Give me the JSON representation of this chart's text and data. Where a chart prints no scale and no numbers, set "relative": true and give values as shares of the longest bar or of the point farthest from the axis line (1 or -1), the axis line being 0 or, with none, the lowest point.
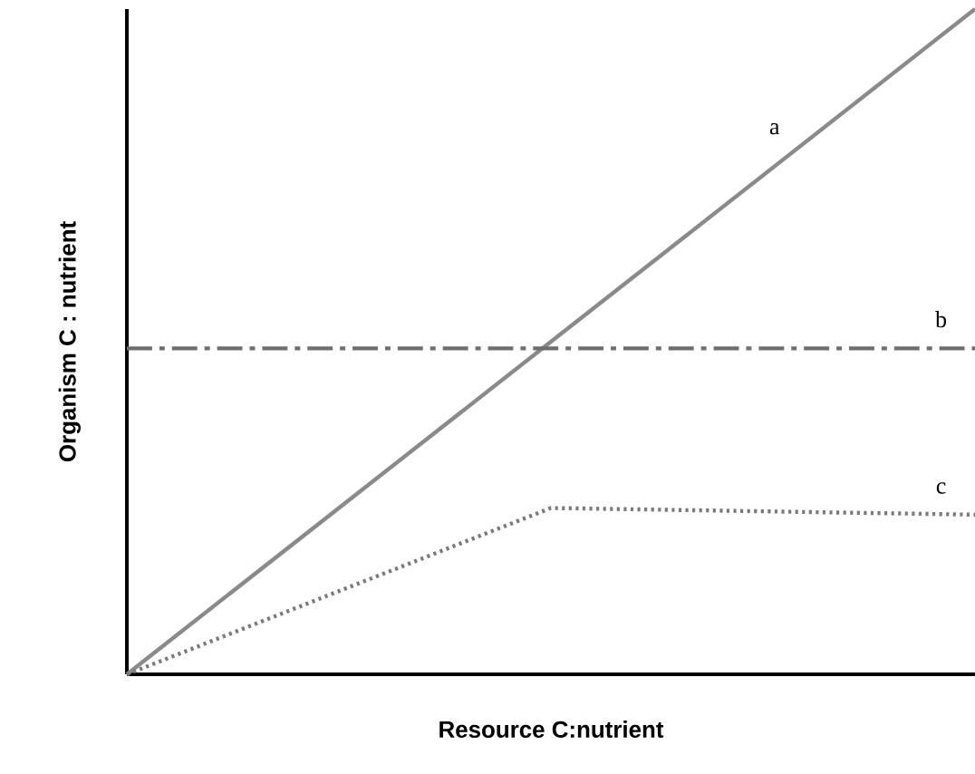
{
  "chart_data": {
    "type": "line",
    "relative": true,
    "xlabel": "Resource C:nutrient",
    "ylabel": "Organism C : nutrient",
    "categories": [
      null,
      null,
      null
    ],
    "series": [
      {
        "name": "a",
        "color": "#8a8a8a",
        "line_style": "solid",
        "values": [
          0,
          0.5,
          1
        ]
      },
      {
        "name": "b",
        "color": "#6e6e6e",
        "line_style": "dashed",
        "values": [
          0.49,
          0.49,
          0.49
        ]
      },
      {
        "name": "c",
        "color": "#7a7a7a",
        "line_style": "dotted",
        "values": [
          0,
          0.25,
          0.24
        ]
      }
    ]
  }
}
